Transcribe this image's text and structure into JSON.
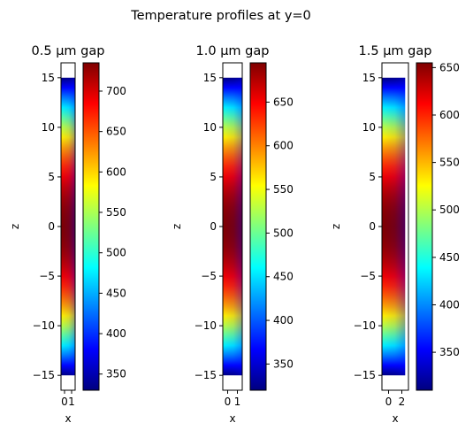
{
  "figure": {
    "suptitle": "Temperature profiles at y=0"
  },
  "colormap": {
    "name": "jet",
    "stops": [
      "#00007f",
      "#0000ff",
      "#007fff",
      "#00ffff",
      "#7fff7f",
      "#ffff00",
      "#ff7f00",
      "#ff0000",
      "#7f0000"
    ]
  },
  "chart_data": [
    {
      "type": "heatmap",
      "title": "0.5 µm gap",
      "xlabel": "x",
      "ylabel": "z",
      "xlim": [
        -0.5,
        1.5
      ],
      "ylim": [
        -16.5,
        16.5
      ],
      "data_extent": {
        "x": [
          -0.5,
          1.5
        ],
        "z": [
          -15,
          15
        ]
      },
      "x_ticks": [
        0,
        1
      ],
      "z_ticks": [
        -15,
        -10,
        -5,
        0,
        5,
        10,
        15
      ],
      "z_tick_labels": [
        "−15",
        "−10",
        "−5",
        "0",
        "5",
        "10",
        "15"
      ],
      "colorbar": {
        "min": 330,
        "max": 735,
        "ticks": [
          350,
          400,
          450,
          500,
          550,
          600,
          650,
          700
        ]
      },
      "profile": {
        "t_center": 735,
        "t_end": 330
      }
    },
    {
      "type": "heatmap",
      "title": "1.0 µm gap",
      "xlabel": "x",
      "ylabel": "z",
      "xlim": [
        -0.5,
        1.5
      ],
      "ylim": [
        -16.5,
        16.5
      ],
      "data_extent": {
        "x": [
          -0.5,
          1.5
        ],
        "z": [
          -15,
          15
        ]
      },
      "x_ticks": [
        0,
        1
      ],
      "z_ticks": [
        -15,
        -10,
        -5,
        0,
        5,
        10,
        15
      ],
      "z_tick_labels": [
        "−15",
        "−10",
        "−5",
        "0",
        "5",
        "10",
        "15"
      ],
      "colorbar": {
        "min": 320,
        "max": 695,
        "ticks": [
          350,
          400,
          450,
          500,
          550,
          600,
          650
        ]
      },
      "profile": {
        "t_center": 695,
        "t_end": 320
      }
    },
    {
      "type": "heatmap",
      "title": "1.5 µm gap",
      "xlabel": "x",
      "ylabel": "z",
      "xlim": [
        -1,
        3
      ],
      "ylim": [
        -16.5,
        16.5
      ],
      "data_extent": {
        "x": [
          -1,
          2.5
        ],
        "z": [
          -15,
          15
        ]
      },
      "x_ticks": [
        0,
        2
      ],
      "z_ticks": [
        -15,
        -10,
        -5,
        0,
        5,
        10,
        15
      ],
      "z_tick_labels": [
        "−15",
        "−10",
        "−5",
        "0",
        "5",
        "10",
        "15"
      ],
      "colorbar": {
        "min": 310,
        "max": 655,
        "ticks": [
          350,
          400,
          450,
          500,
          550,
          600,
          650
        ]
      },
      "profile": {
        "t_center": 655,
        "t_end": 310
      }
    }
  ]
}
